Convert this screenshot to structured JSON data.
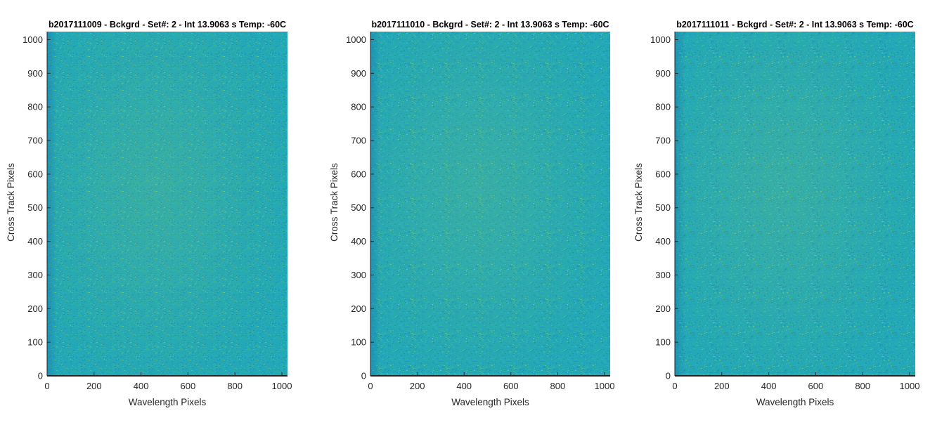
{
  "chart_data": [
    {
      "type": "heatmap",
      "title": "b2017111009 - Bckgrd - Set#: 2 - Int 13.9063 s Temp: -60C",
      "xlabel": "Wavelength Pixels",
      "ylabel": "Cross Track Pixels",
      "xlim": [
        0,
        1024
      ],
      "ylim": [
        0,
        1024
      ],
      "xticks": [
        0,
        200,
        400,
        600,
        800,
        1000
      ],
      "yticks": [
        0,
        100,
        200,
        300,
        400,
        500,
        600,
        700,
        800,
        900,
        1000
      ],
      "grid": false,
      "colormap": [
        "#1f8fb8",
        "#22a8b6",
        "#3bb59c",
        "#74c178"
      ]
    },
    {
      "type": "heatmap",
      "title": "b2017111010 - Bckgrd - Set#: 2 - Int 13.9063 s Temp: -60C",
      "xlabel": "Wavelength Pixels",
      "ylabel": "Cross Track Pixels",
      "xlim": [
        0,
        1024
      ],
      "ylim": [
        0,
        1024
      ],
      "xticks": [
        0,
        200,
        400,
        600,
        800,
        1000
      ],
      "yticks": [
        0,
        100,
        200,
        300,
        400,
        500,
        600,
        700,
        800,
        900,
        1000
      ],
      "grid": false,
      "colormap": [
        "#1f8fb8",
        "#22a8b6",
        "#3bb59c",
        "#74c178"
      ]
    },
    {
      "type": "heatmap",
      "title": "b2017111011 - Bckgrd - Set#: 2 - Int 13.9063 s Temp: -60C",
      "xlabel": "Wavelength Pixels",
      "ylabel": "Cross Track Pixels",
      "xlim": [
        0,
        1024
      ],
      "ylim": [
        0,
        1024
      ],
      "xticks": [
        0,
        200,
        400,
        600,
        800,
        1000
      ],
      "yticks": [
        0,
        100,
        200,
        300,
        400,
        500,
        600,
        700,
        800,
        900,
        1000
      ],
      "grid": false,
      "colormap": [
        "#1f8fb8",
        "#22a8b6",
        "#3bb59c",
        "#74c178"
      ]
    }
  ]
}
